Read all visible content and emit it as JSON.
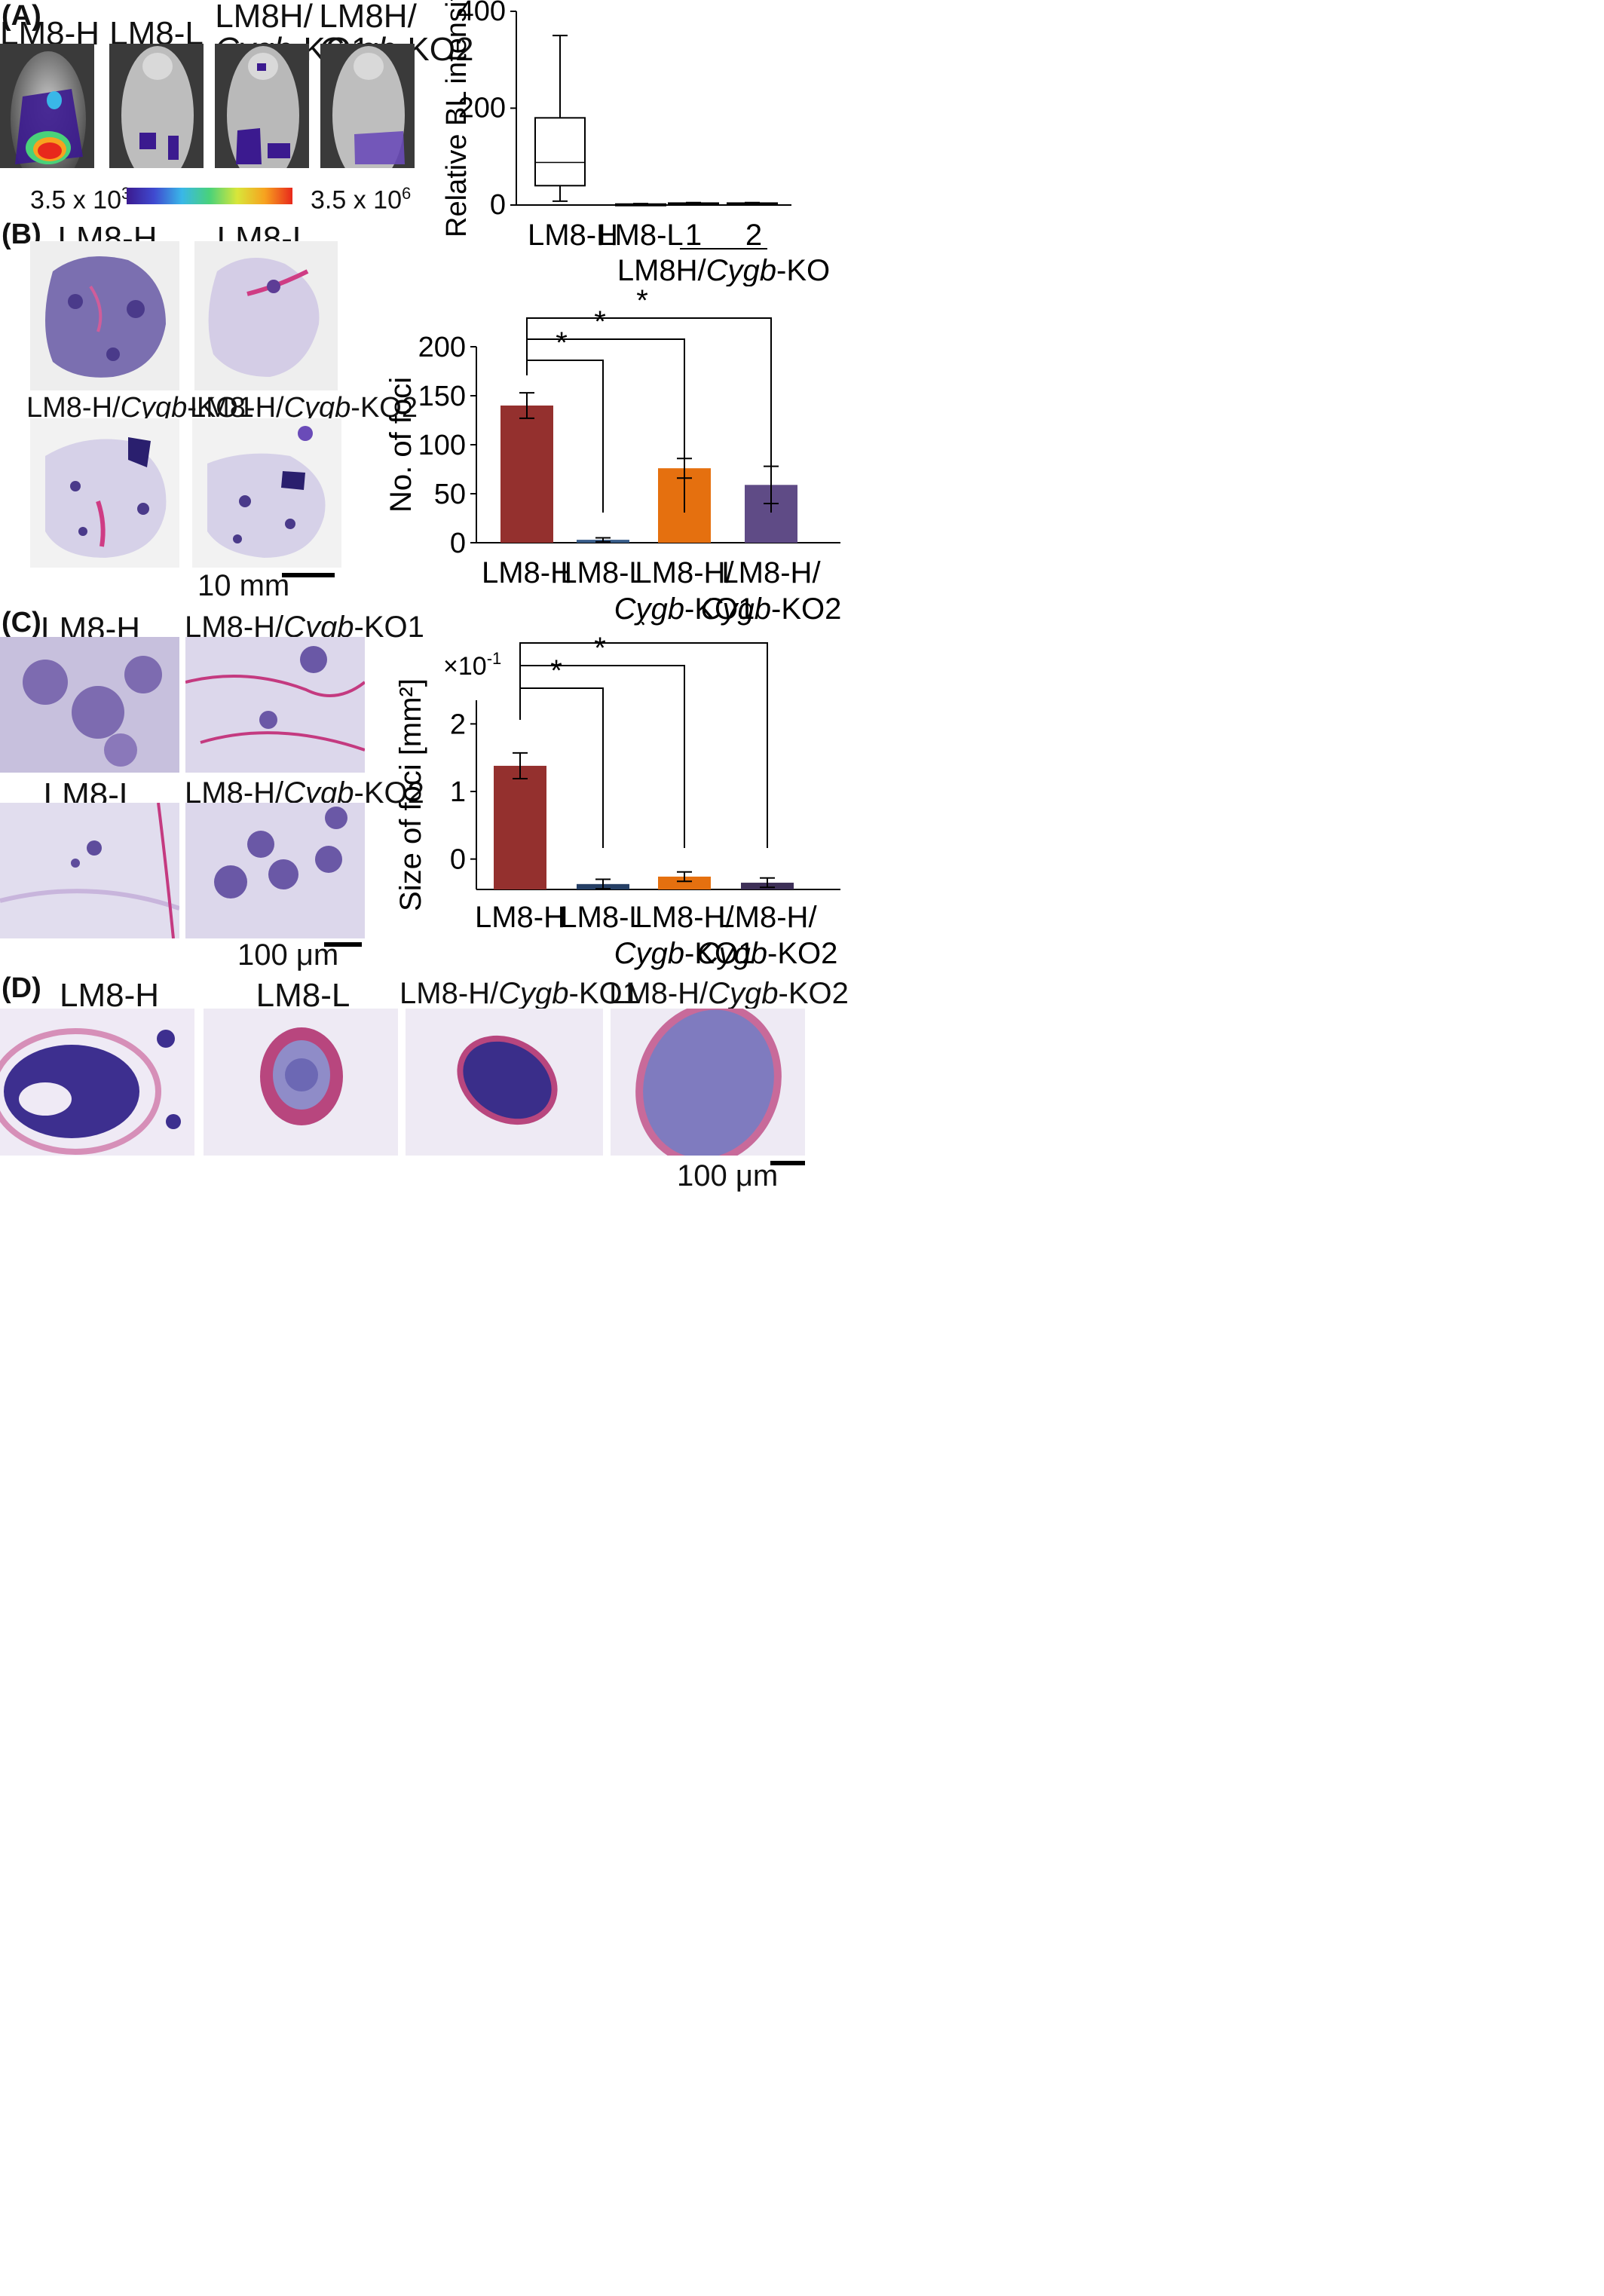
{
  "panels": {
    "a": "(A)",
    "b": "(B)",
    "c": "(C)",
    "d": "(D)"
  },
  "panel_a": {
    "images": [
      {
        "line1": "LM8-H",
        "line2": ""
      },
      {
        "line1": "LM8-L",
        "line2": ""
      },
      {
        "line1": "LM8H/",
        "line2a": "Cygb",
        "line2b": "-KO1"
      },
      {
        "line1": "LM8H/",
        "line2a": "Cygb",
        "line2b": "-KO2"
      }
    ],
    "scale_min_base": "3.5 x 10",
    "scale_min_exp": "3",
    "scale_max_base": "3.5 x 10",
    "scale_max_exp": "6",
    "gradient_colors": [
      "#3b1a8f",
      "#3f4ad0",
      "#39b7e8",
      "#49d27a",
      "#d8e63a",
      "#f7a21f",
      "#e8281c"
    ]
  },
  "panel_b": {
    "images": [
      {
        "a": "LM8-H",
        "b": "",
        "c": ""
      },
      {
        "a": "LM8-L",
        "b": "",
        "c": ""
      },
      {
        "a": "LM8-H/",
        "b": "Cygb",
        "c": "-KO1"
      },
      {
        "a": "LM8-H/",
        "b": "Cygb",
        "c": "-KO2"
      }
    ],
    "scale_bar": "10 mm"
  },
  "panel_c": {
    "images": [
      {
        "a": "LM8-H",
        "b": "",
        "c": ""
      },
      {
        "a": "LM8-H/",
        "b": "Cygb",
        "c": "-KO1"
      },
      {
        "a": "LM8-L",
        "b": "",
        "c": ""
      },
      {
        "a": "LM8-H/",
        "b": "Cygb",
        "c": "-KO2"
      }
    ],
    "scale_bar": "100 μm"
  },
  "panel_d": {
    "images": [
      {
        "a": "LM8-H",
        "b": "",
        "c": ""
      },
      {
        "a": "LM8-L",
        "b": "",
        "c": ""
      },
      {
        "a": "LM8-H/",
        "b": "Cygb",
        "c": "-KO1"
      },
      {
        "a": "LM8-H/",
        "b": "Cygb",
        "c": "-KO2"
      }
    ],
    "scale_bar": "100 μm"
  },
  "chart_data": [
    {
      "type": "box",
      "ylabel": "Relative BL intensity",
      "ylim": [
        0,
        400
      ],
      "yticks": [
        0,
        200,
        400
      ],
      "categories": [
        "LM8-H",
        "LM8-L",
        "1",
        "2"
      ],
      "group_label_a": "LM8H/",
      "group_label_b": "Cygb",
      "group_label_c": "-KO",
      "boxes": [
        {
          "min": 8,
          "q1": 40,
          "median": 88,
          "q3": 180,
          "max": 350
        },
        {
          "min": 0,
          "q1": 1,
          "median": 1.5,
          "q3": 2,
          "max": 3
        },
        {
          "min": 0,
          "q1": 2,
          "median": 3,
          "q3": 4,
          "max": 5
        },
        {
          "min": 0,
          "q1": 2,
          "median": 3,
          "q3": 4,
          "max": 5
        }
      ]
    },
    {
      "type": "bar",
      "ylabel": "No. of foci",
      "ylim": [
        0,
        200
      ],
      "yticks": [
        0,
        50,
        100,
        150,
        200
      ],
      "categories": [
        {
          "a": "LM8-H",
          "b": "",
          "c": ""
        },
        {
          "a": "LM8-L",
          "b": "",
          "c": ""
        },
        {
          "a": "LM8-H/",
          "b": "Cygb",
          "c": "-KO1"
        },
        {
          "a": "LM8-H/",
          "b": "Cygb",
          "c": "-KO2"
        }
      ],
      "values": [
        140,
        3,
        76,
        59
      ],
      "errors": [
        13,
        2,
        10,
        19
      ],
      "colors": [
        "#94302e",
        "#385d8a",
        "#e5700f",
        "#5f4b86"
      ],
      "significance": "*"
    },
    {
      "type": "bar",
      "ylabel": "Size of foci [mm²]",
      "multiplier": "×10",
      "multiplier_exp": "-1",
      "ylim": [
        -0.45,
        2.35
      ],
      "yticks": [
        0,
        1,
        2
      ],
      "categories": [
        {
          "a": "LM8-H",
          "b": "",
          "c": ""
        },
        {
          "a": "LM8-L",
          "b": "",
          "c": ""
        },
        {
          "a": "LM8-H/",
          "b": "Cygb",
          "c": "-KO1"
        },
        {
          "a": "LM8-H/",
          "b": "Cygb",
          "c": "-KO2"
        }
      ],
      "values": [
        1.38,
        -0.37,
        -0.26,
        -0.35
      ],
      "errors": [
        0.19,
        0.07,
        0.07,
        0.07
      ],
      "colors": [
        "#94302e",
        "#253f65",
        "#e5700f",
        "#3d2f57"
      ],
      "significance": "*"
    }
  ]
}
